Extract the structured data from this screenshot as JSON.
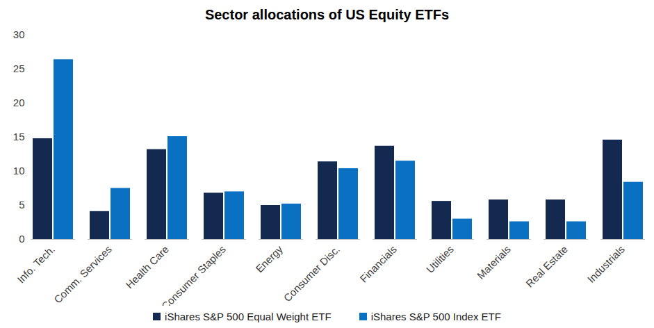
{
  "chart_data": {
    "type": "bar",
    "title": "Sector allocations of US Equity ETFs",
    "categories": [
      "Info. Tech.",
      "Comm. Services",
      "Health Care",
      "Consumer Staples",
      "Energy",
      "Consumer Disc.",
      "Financials",
      "Utilities",
      "Materials",
      "Real Estate",
      "Industrials"
    ],
    "series": [
      {
        "name": "iShares S&P 500 Equal Weight ETF",
        "color": "#14294f",
        "values": [
          14.8,
          4.1,
          13.2,
          6.8,
          5.0,
          11.4,
          13.7,
          5.6,
          5.8,
          5.8,
          14.6
        ]
      },
      {
        "name": "iShares S&P 500 Index ETF",
        "color": "#0a70c2",
        "values": [
          26.4,
          7.5,
          15.1,
          7.0,
          5.2,
          10.4,
          11.5,
          3.0,
          2.6,
          2.6,
          8.4
        ]
      }
    ],
    "ylim": [
      0,
      30
    ],
    "yticks": [
      0,
      5,
      10,
      15,
      20,
      25,
      30
    ],
    "grid": false,
    "legend": "bottom"
  }
}
